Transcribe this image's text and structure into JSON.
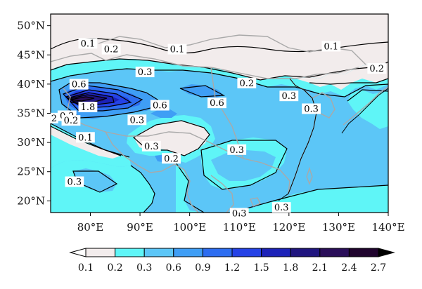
{
  "map": {
    "projection": "lat-lon",
    "lon_range": [
      72,
      140
    ],
    "lat_range": [
      18,
      52
    ],
    "lon_ticks": [
      {
        "value": 80,
        "label": "80°E"
      },
      {
        "value": 90,
        "label": "90°E"
      },
      {
        "value": 100,
        "label": "100°E"
      },
      {
        "value": 110,
        "label": "110°E"
      },
      {
        "value": 120,
        "label": "120°E"
      },
      {
        "value": 130,
        "label": "130°E"
      },
      {
        "value": 140,
        "label": "140°E"
      }
    ],
    "lat_ticks": [
      {
        "value": 20,
        "label": "20°N"
      },
      {
        "value": 25,
        "label": "25°N"
      },
      {
        "value": 30,
        "label": "30°N"
      },
      {
        "value": 35,
        "label": "35°N"
      },
      {
        "value": 40,
        "label": "40°N"
      },
      {
        "value": 45,
        "label": "45°N"
      },
      {
        "value": 50,
        "label": "50°N"
      }
    ],
    "contour_labels": [
      {
        "text": "0.1",
        "lon": 79.5,
        "lat": 46.8
      },
      {
        "text": "0.2",
        "lon": 84.2,
        "lat": 45.8
      },
      {
        "text": "0.1",
        "lon": 97.5,
        "lat": 45.8
      },
      {
        "text": "0.1",
        "lon": 128.5,
        "lat": 46.3
      },
      {
        "text": "0.2",
        "lon": 137.7,
        "lat": 42.5
      },
      {
        "text": "0.3",
        "lon": 91.0,
        "lat": 41.9
      },
      {
        "text": "0.2",
        "lon": 111.5,
        "lat": 40.0
      },
      {
        "text": "0.6",
        "lon": 77.7,
        "lat": 39.8
      },
      {
        "text": "0.3",
        "lon": 120.0,
        "lat": 37.8
      },
      {
        "text": "0.6",
        "lon": 105.5,
        "lat": 36.6
      },
      {
        "text": "0.6",
        "lon": 94.0,
        "lat": 36.2
      },
      {
        "text": "1.8",
        "lon": 79.5,
        "lat": 35.9
      },
      {
        "text": "0.3",
        "lon": 124.5,
        "lat": 35.6
      },
      {
        "text": "0.2",
        "lon": 75.3,
        "lat": 34.4
      },
      {
        "text": "2",
        "lon": 72.7,
        "lat": 34.0
      },
      {
        "text": "0.2",
        "lon": 76.1,
        "lat": 33.6
      },
      {
        "text": "0.3",
        "lon": 89.4,
        "lat": 33.7
      },
      {
        "text": "0.1",
        "lon": 79.0,
        "lat": 30.7
      },
      {
        "text": "0.3",
        "lon": 92.3,
        "lat": 29.2
      },
      {
        "text": "0.3",
        "lon": 109.5,
        "lat": 28.6
      },
      {
        "text": "0.2",
        "lon": 96.3,
        "lat": 27.1
      },
      {
        "text": "0.3",
        "lon": 76.8,
        "lat": 23.1
      },
      {
        "text": "0.3",
        "lon": 110.0,
        "lat": 17.7
      },
      {
        "text": "0.3",
        "lon": 118.5,
        "lat": 18.7
      }
    ]
  },
  "colorbar": {
    "levels": [
      "0.1",
      "0.2",
      "0.3",
      "0.6",
      "0.9",
      "1.2",
      "1.5",
      "1.8",
      "2.1",
      "2.4",
      "2.7"
    ],
    "colors": [
      "#ffffff",
      "#f2ecec",
      "#5ff5f7",
      "#5cc6f7",
      "#3f9ef5",
      "#2d6df0",
      "#2542e6",
      "#1c22b8",
      "#20157f",
      "#2a0e59",
      "#20042e",
      "#000000"
    ]
  },
  "colors": {
    "land_low": "#f2ecec",
    "level_0_3": "#5ff5f7",
    "level_0_6": "#5cc6f7",
    "level_0_9": "#3f9ef5",
    "level_1_2": "#2d6df0",
    "level_1_5": "#2542e6",
    "level_1_8": "#1c22b8",
    "level_2_1": "#20157f",
    "level_2_4": "#2a0e59",
    "boundary": "#a9a9a9"
  }
}
